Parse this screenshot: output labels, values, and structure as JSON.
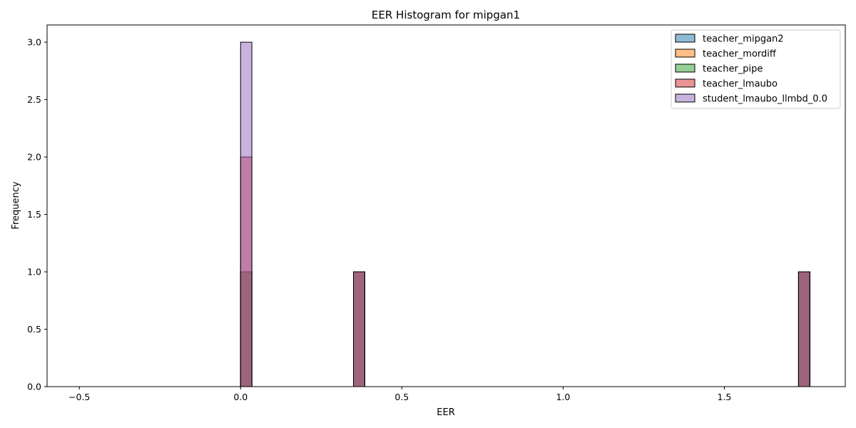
{
  "chart_data": {
    "type": "bar",
    "title": "EER Histogram for mipgan1",
    "xlabel": "EER",
    "ylabel": "Frequency",
    "xlim": [
      -0.6,
      1.875
    ],
    "ylim": [
      0,
      3.15
    ],
    "x_ticks": [
      -0.5,
      0.0,
      0.5,
      1.0,
      1.5
    ],
    "x_tick_labels": [
      "−0.5",
      "0.0",
      "0.5",
      "1.0",
      "1.5"
    ],
    "y_ticks": [
      0.0,
      0.5,
      1.0,
      1.5,
      2.0,
      2.5,
      3.0
    ],
    "y_tick_labels": [
      "0.0",
      "0.5",
      "1.0",
      "1.5",
      "2.0",
      "2.5",
      "3.0"
    ],
    "bin_width": 0.035,
    "legend_position": "top-right",
    "series": [
      {
        "name": "teacher_mipgan2",
        "color": "#1f77b4",
        "bins": [
          {
            "x0": 0.0,
            "count": 1
          },
          {
            "x0": 0.35,
            "count": 1
          },
          {
            "x0": 1.73,
            "count": 1
          }
        ]
      },
      {
        "name": "teacher_mordiff",
        "color": "#ff7f0e",
        "bins": [
          {
            "x0": 0.0,
            "count": 1
          },
          {
            "x0": 0.35,
            "count": 1
          },
          {
            "x0": 1.73,
            "count": 1
          }
        ]
      },
      {
        "name": "teacher_pipe",
        "color": "#2ca02c",
        "bins": [
          {
            "x0": 0.0,
            "count": 1
          },
          {
            "x0": 0.35,
            "count": 1
          },
          {
            "x0": 1.73,
            "count": 1
          }
        ]
      },
      {
        "name": "teacher_lmaubo",
        "color": "#d62728",
        "bins": [
          {
            "x0": 0.0,
            "count": 2
          },
          {
            "x0": 0.35,
            "count": 1
          },
          {
            "x0": 1.73,
            "count": 1
          }
        ]
      },
      {
        "name": "student_lmaubo_llmbd_0.0",
        "color": "#9467bd",
        "bins": [
          {
            "x0": 0.0,
            "count": 3
          },
          {
            "x0": 0.35,
            "count": 1
          },
          {
            "x0": 1.73,
            "count": 1
          }
        ]
      }
    ]
  }
}
